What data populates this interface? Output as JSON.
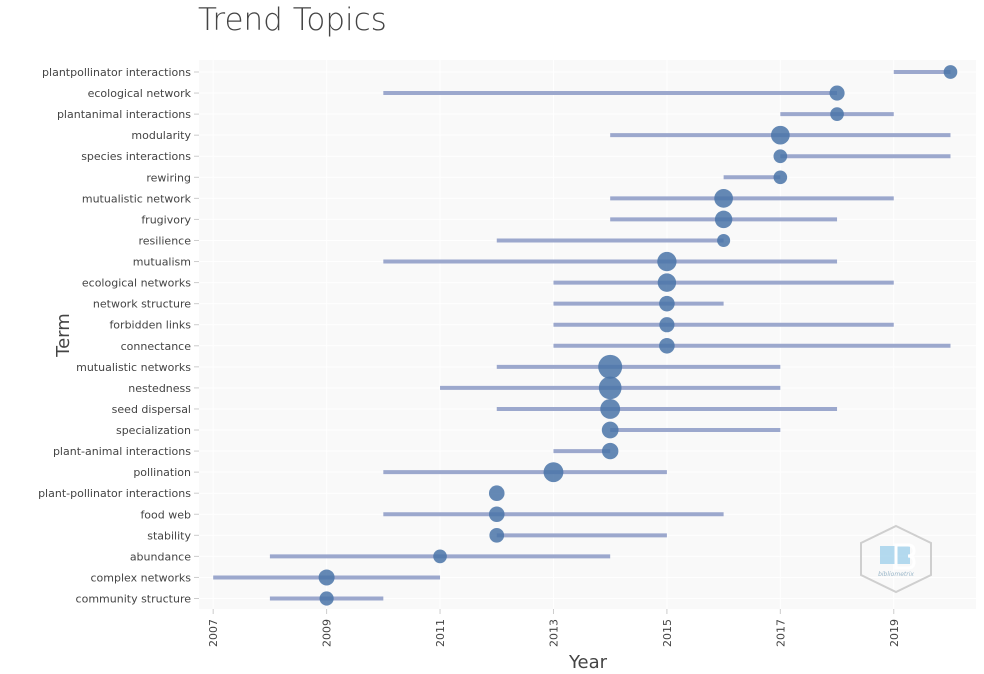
{
  "chart_data": {
    "type": "scatter",
    "title": "Trend Topics",
    "xlabel": "Year",
    "ylabel": "Term",
    "xlim": [
      2006.75,
      2020.45
    ],
    "x_ticks": [
      2007,
      2009,
      2011,
      2013,
      2015,
      2017,
      2019
    ],
    "grid": true,
    "colors": {
      "point": "#4a74a8",
      "range": "#9ca8cd",
      "panel": "#f9f9f9"
    },
    "terms": [
      {
        "term": "plantpollinator interactions",
        "year": 2020,
        "q1": 2019,
        "q3": 2020,
        "freq": 5
      },
      {
        "term": "ecological network",
        "year": 2018,
        "q1": 2010,
        "q3": 2018,
        "freq": 8
      },
      {
        "term": "plantanimal interactions",
        "year": 2018,
        "q1": 2017,
        "q3": 2019,
        "freq": 5
      },
      {
        "term": "modularity",
        "year": 2017,
        "q1": 2014,
        "q3": 2020,
        "freq": 18
      },
      {
        "term": "species interactions",
        "year": 2017,
        "q1": 2017,
        "q3": 2020,
        "freq": 5
      },
      {
        "term": "rewiring",
        "year": 2017,
        "q1": 2016,
        "q3": 2017,
        "freq": 5
      },
      {
        "term": "mutualistic network",
        "year": 2016,
        "q1": 2014,
        "q3": 2019,
        "freq": 18
      },
      {
        "term": "frugivory",
        "year": 2016,
        "q1": 2014,
        "q3": 2018,
        "freq": 14
      },
      {
        "term": "resilience",
        "year": 2016,
        "q1": 2012,
        "q3": 2016,
        "freq": 4
      },
      {
        "term": "mutualism",
        "year": 2015,
        "q1": 2010,
        "q3": 2018,
        "freq": 20
      },
      {
        "term": "ecological networks",
        "year": 2015,
        "q1": 2013,
        "q3": 2019,
        "freq": 17
      },
      {
        "term": "network structure",
        "year": 2015,
        "q1": 2013,
        "q3": 2016,
        "freq": 9
      },
      {
        "term": "forbidden links",
        "year": 2015,
        "q1": 2013,
        "q3": 2019,
        "freq": 8
      },
      {
        "term": "connectance",
        "year": 2015,
        "q1": 2013,
        "q3": 2020,
        "freq": 9
      },
      {
        "term": "mutualistic networks",
        "year": 2014,
        "q1": 2012,
        "q3": 2017,
        "freq": 40
      },
      {
        "term": "nestedness",
        "year": 2014,
        "q1": 2011,
        "q3": 2017,
        "freq": 34
      },
      {
        "term": "seed dispersal",
        "year": 2014,
        "q1": 2012,
        "q3": 2018,
        "freq": 22
      },
      {
        "term": "specialization",
        "year": 2014,
        "q1": 2014,
        "q3": 2017,
        "freq": 12
      },
      {
        "term": "plant-animal interactions",
        "year": 2014,
        "q1": 2013,
        "q3": 2014,
        "freq": 11
      },
      {
        "term": "pollination",
        "year": 2013,
        "q1": 2010,
        "q3": 2015,
        "freq": 22
      },
      {
        "term": "plant-pollinator interactions",
        "year": 2012,
        "q1": 2012,
        "q3": 2012,
        "freq": 9
      },
      {
        "term": "food web",
        "year": 2012,
        "q1": 2010,
        "q3": 2016,
        "freq": 9
      },
      {
        "term": "stability",
        "year": 2012,
        "q1": 2012,
        "q3": 2015,
        "freq": 7
      },
      {
        "term": "abundance",
        "year": 2011,
        "q1": 2008,
        "q3": 2014,
        "freq": 5
      },
      {
        "term": "complex networks",
        "year": 2009,
        "q1": 2007,
        "q3": 2011,
        "freq": 10
      },
      {
        "term": "community structure",
        "year": 2009,
        "q1": 2008,
        "q3": 2010,
        "freq": 6
      }
    ]
  }
}
